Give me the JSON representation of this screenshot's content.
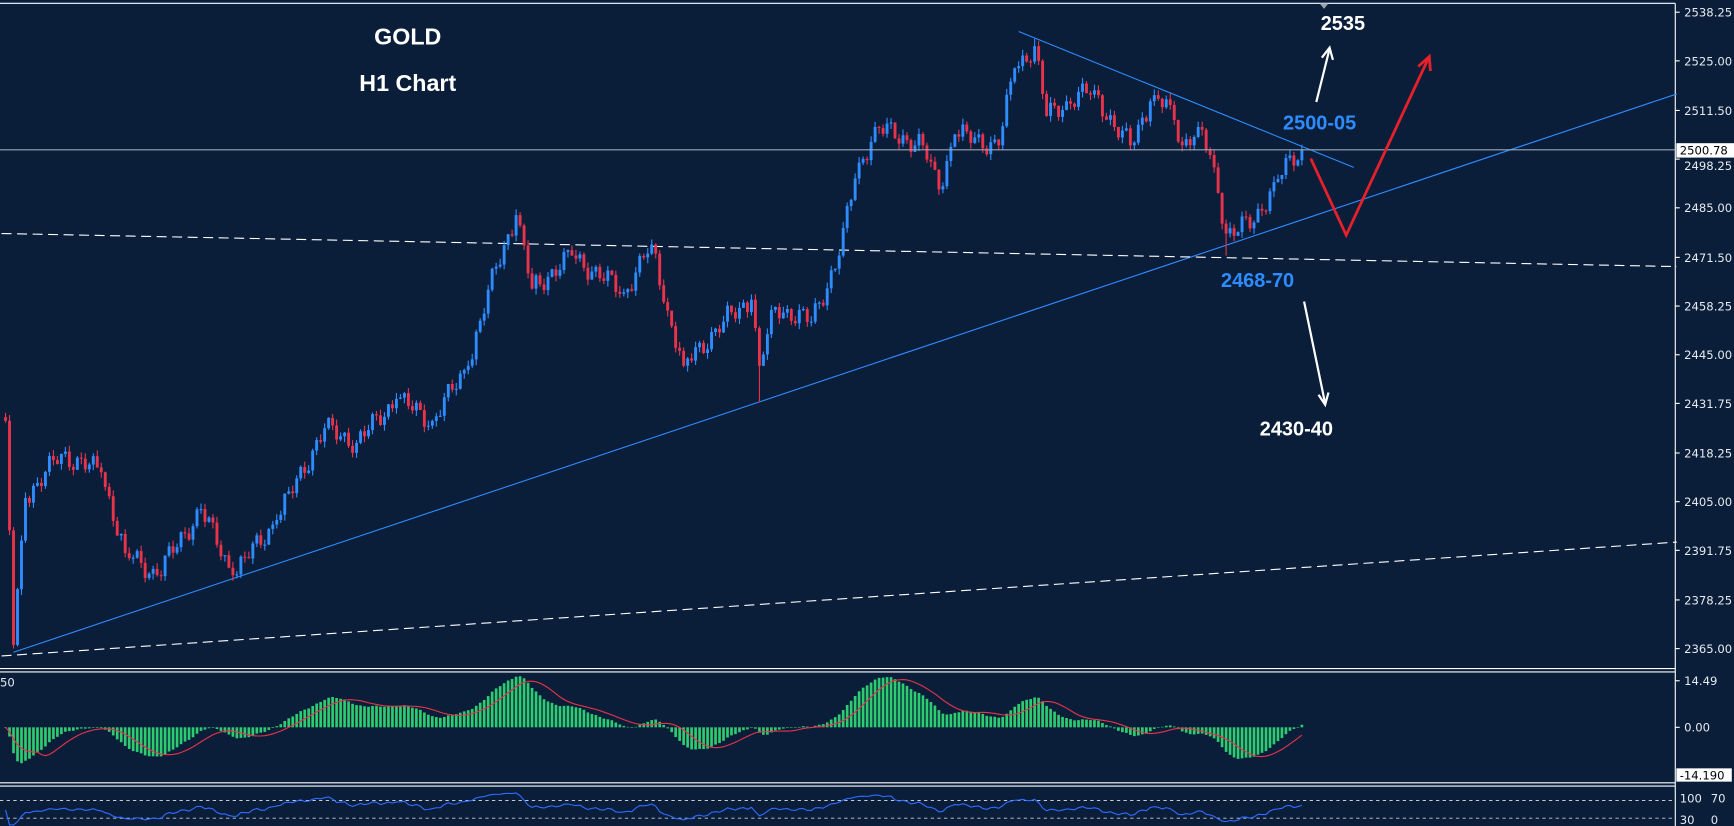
{
  "title": {
    "line1": "GOLD",
    "line2": "H1 Chart"
  },
  "colors": {
    "background": "#0a1e3a",
    "bull": "#2f8cff",
    "bear": "#e8334a",
    "trendline": "#2f8cff",
    "histogram": "#2ecc71",
    "signal": "#e8334a",
    "rsi": "#2f6bff",
    "annotation_blue": "#2f8cff",
    "annotation_white": "#ffffff",
    "arrow_red": "#e8202a"
  },
  "annotations": {
    "target_up": "2535",
    "resistance": "2500-05",
    "support": "2468-70",
    "target_down": "2430-40"
  },
  "macd_panel": {
    "label_cut": "50",
    "axis": [
      "14.49",
      "0.00",
      "-14.190"
    ]
  },
  "rsi_panel": {
    "axis": [
      "100",
      "70",
      "30",
      "0"
    ]
  },
  "chart_data": {
    "type": "candlestick",
    "ylim": [
      2365.0,
      2538.25
    ],
    "y_ticks": [
      "2538.25",
      "2525.00",
      "2511.50",
      "2498.25",
      "2485.00",
      "2471.50",
      "2458.25",
      "2445.00",
      "2431.75",
      "2418.25",
      "2405.00",
      "2391.75",
      "2378.25",
      "2365.00"
    ],
    "current_price": "2500.78",
    "close_path": [
      {
        "bar": 1,
        "close": 2427
      },
      {
        "bar": 3,
        "close": 2366,
        "low": 2365
      },
      {
        "bar": 6,
        "close": 2406
      },
      {
        "bar": 15,
        "close": 2418
      },
      {
        "bar": 25,
        "close": 2413
      },
      {
        "bar": 31,
        "close": 2391
      },
      {
        "bar": 39,
        "close": 2385
      },
      {
        "bar": 50,
        "close": 2403
      },
      {
        "bar": 58,
        "close": 2385
      },
      {
        "bar": 69,
        "close": 2400
      },
      {
        "bar": 81,
        "close": 2425
      },
      {
        "bar": 89,
        "close": 2421
      },
      {
        "bar": 99,
        "close": 2433
      },
      {
        "bar": 108,
        "close": 2427
      },
      {
        "bar": 117,
        "close": 2442
      },
      {
        "bar": 124,
        "close": 2469
      },
      {
        "bar": 129,
        "close": 2483
      },
      {
        "bar": 133,
        "close": 2463
      },
      {
        "bar": 143,
        "close": 2472
      },
      {
        "bar": 156,
        "close": 2462
      },
      {
        "bar": 163,
        "close": 2475
      },
      {
        "bar": 167,
        "close": 2457
      },
      {
        "bar": 171,
        "close": 2442
      },
      {
        "bar": 181,
        "close": 2454
      },
      {
        "bar": 188,
        "close": 2460
      },
      {
        "bar": 190,
        "close": 2442,
        "low": 2432
      },
      {
        "bar": 194,
        "close": 2458
      },
      {
        "bar": 203,
        "close": 2454
      },
      {
        "bar": 210,
        "close": 2472
      },
      {
        "bar": 214,
        "close": 2493
      },
      {
        "bar": 219,
        "close": 2507
      },
      {
        "bar": 231,
        "close": 2502
      },
      {
        "bar": 235,
        "close": 2490
      },
      {
        "bar": 239,
        "close": 2505
      },
      {
        "bar": 250,
        "close": 2502
      },
      {
        "bar": 254,
        "close": 2523
      },
      {
        "bar": 259,
        "close": 2529,
        "high": 2531
      },
      {
        "bar": 262,
        "close": 2510
      },
      {
        "bar": 267,
        "close": 2514
      },
      {
        "bar": 274,
        "close": 2517
      },
      {
        "bar": 279,
        "close": 2507
      },
      {
        "bar": 283,
        "close": 2502
      },
      {
        "bar": 288,
        "close": 2514
      },
      {
        "bar": 293,
        "close": 2513
      },
      {
        "bar": 296,
        "close": 2502
      },
      {
        "bar": 300,
        "close": 2507
      },
      {
        "bar": 304,
        "close": 2496
      },
      {
        "bar": 307,
        "close": 2478,
        "low": 2472
      },
      {
        "bar": 314,
        "close": 2481
      },
      {
        "bar": 319,
        "close": 2492
      },
      {
        "bar": 326,
        "close": 2500.78
      }
    ],
    "trendlines": [
      {
        "kind": "support-ascending",
        "from": [
          3,
          2364
        ],
        "to": [
          420,
          2516
        ],
        "style": "solid"
      },
      {
        "kind": "resistance-descending",
        "from": [
          255,
          2533
        ],
        "to": [
          339,
          2496
        ],
        "style": "solid"
      },
      {
        "kind": "channel-upper",
        "from": [
          0,
          2478
        ],
        "to": [
          420,
          2469
        ],
        "style": "dashed"
      },
      {
        "kind": "channel-lower",
        "from": [
          0,
          2363
        ],
        "to": [
          420,
          2394
        ],
        "style": "dashed"
      }
    ],
    "indicators": [
      "MACD histogram with signal line",
      "RSI with 70/30 levels"
    ],
    "grid": false
  }
}
